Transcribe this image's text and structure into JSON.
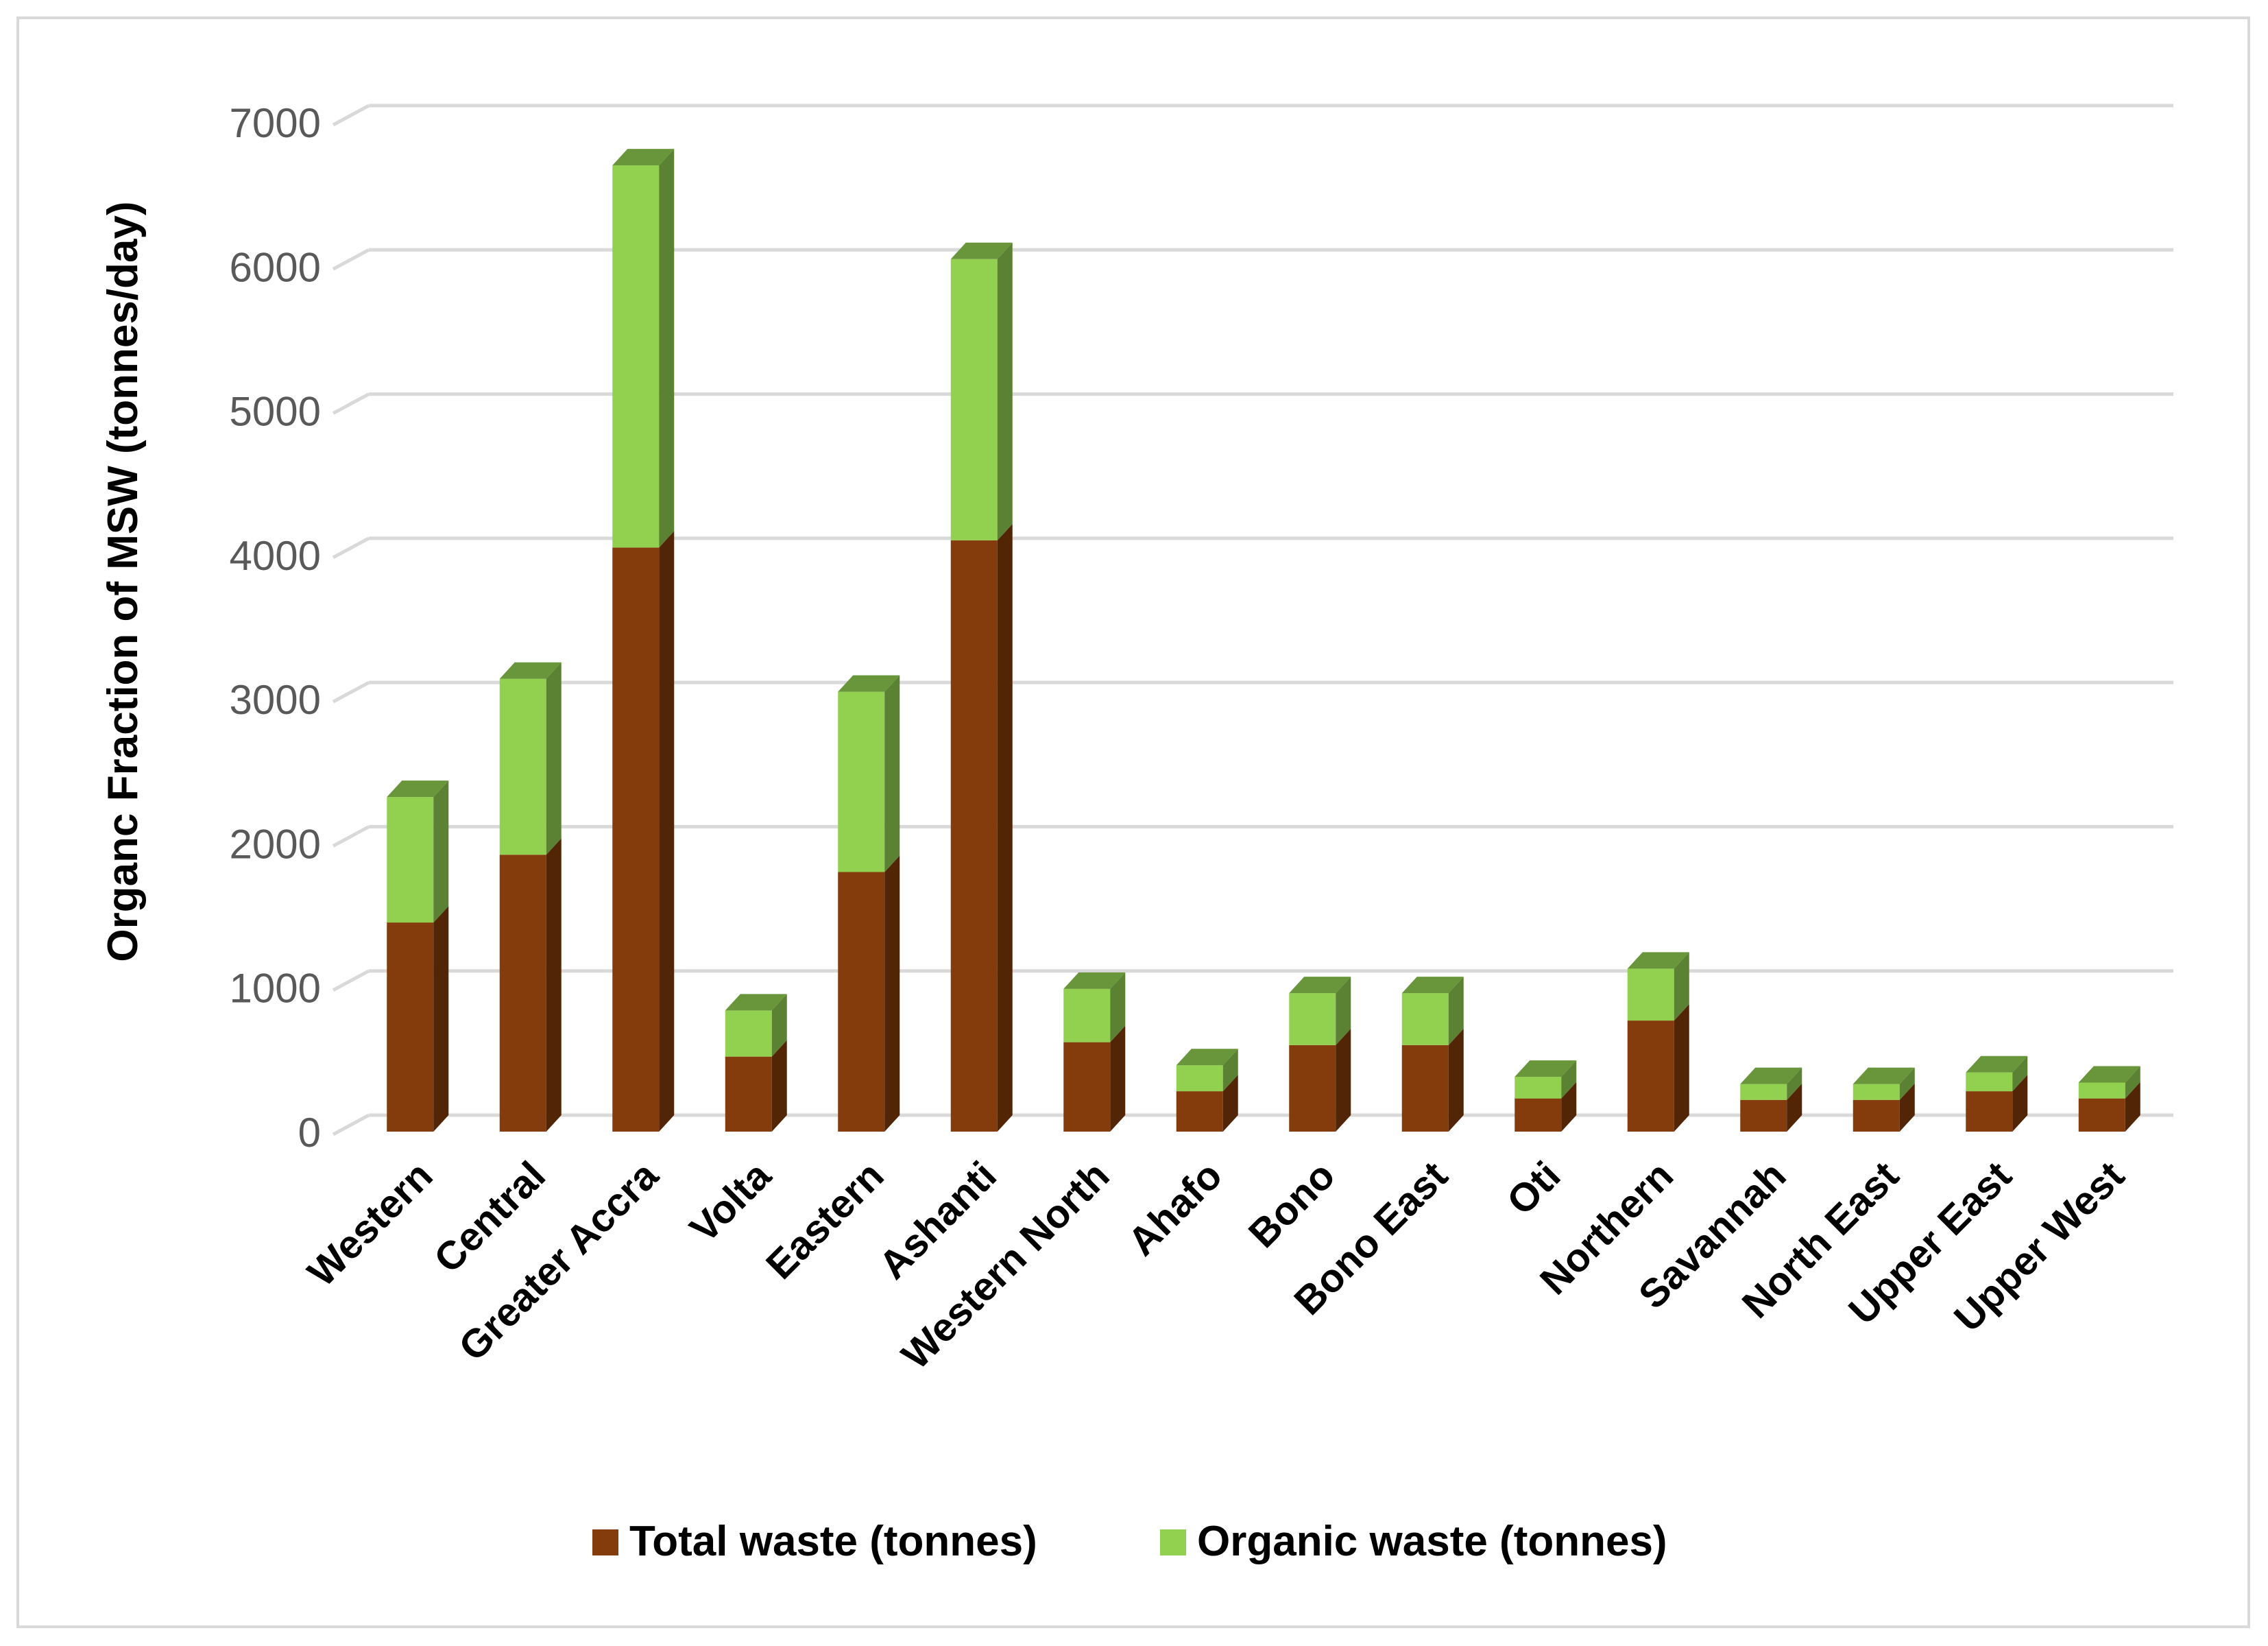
{
  "chart_data": {
    "type": "bar",
    "stacked": true,
    "title": "",
    "xlabel": "",
    "ylabel": "Organc Fraction  of MSW (tonnes/day)",
    "ylim": [
      0,
      7000
    ],
    "yticks": [
      0,
      1000,
      2000,
      3000,
      4000,
      5000,
      6000,
      7000
    ],
    "ytick_labels": [
      "0",
      "1000",
      "2000",
      "3000",
      "4000",
      "5000",
      "6000",
      "7000"
    ],
    "grid": true,
    "legend_position": "bottom",
    "categories": [
      "Western",
      "Central",
      "Greater Accra",
      "Volta",
      "Eastern",
      "Ashanti",
      "Western North",
      "Ahafo",
      "Bono",
      "Bono East",
      "Oti",
      "Northern",
      "Savannah",
      "North East",
      "Upper East",
      "Upper West"
    ],
    "series": [
      {
        "name": "Total waste (tonnes)",
        "color": "#843c0c",
        "values": [
          1450,
          1920,
          4050,
          520,
          1800,
          4100,
          620,
          280,
          600,
          600,
          230,
          770,
          220,
          220,
          280,
          230
        ]
      },
      {
        "name": "Organic waste (tonnes)",
        "color": "#92d050",
        "values": [
          870,
          1220,
          2650,
          320,
          1250,
          1950,
          370,
          180,
          360,
          360,
          150,
          360,
          110,
          110,
          130,
          110
        ]
      }
    ]
  }
}
